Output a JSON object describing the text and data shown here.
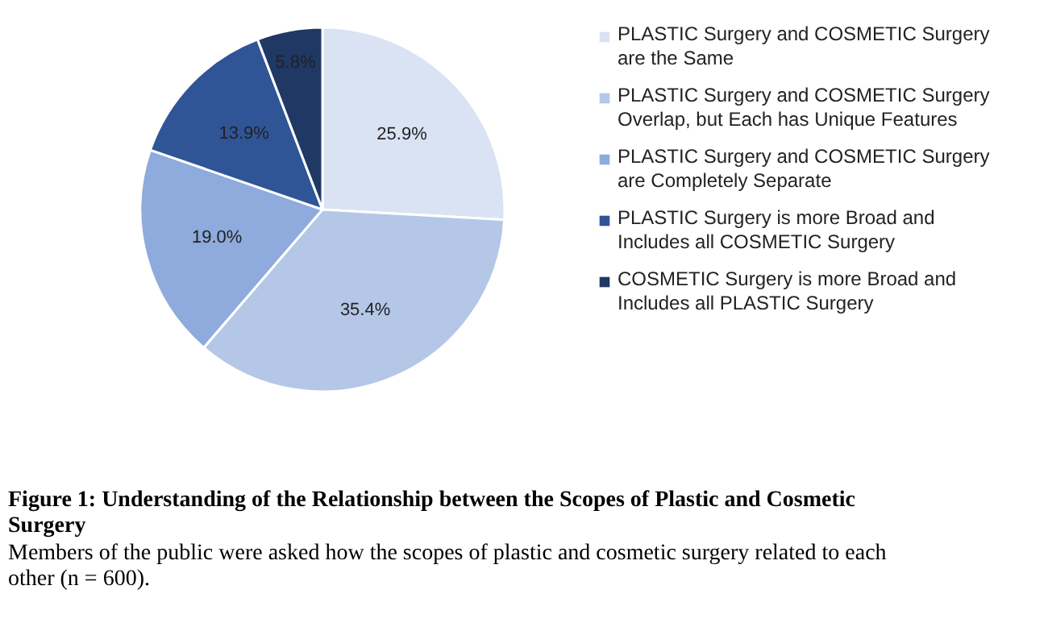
{
  "chart_data": {
    "type": "pie",
    "title": "Figure 1: Understanding of the Relationship between the Scopes of Plastic and Cosmetic Surgery",
    "subtitle": "Members of the public were asked how the scopes of plastic and cosmetic surgery related to each other (n = 600).",
    "categories": [
      "PLASTIC Surgery and COSMETIC Surgery are the Same",
      "PLASTIC Surgery and COSMETIC Surgery Overlap, but Each has Unique Features",
      "PLASTIC Surgery and COSMETIC Surgery are Completely Separate",
      "PLASTIC Surgery is more Broad and Includes all COSMETIC Surgery",
      "COSMETIC Surgery is more Broad and Includes all PLASTIC Surgery"
    ],
    "values": [
      25.9,
      35.4,
      19.0,
      13.9,
      5.8
    ],
    "value_labels": [
      "25.9%",
      "35.4%",
      "19.0%",
      "13.9%",
      "5.8%"
    ],
    "colors": [
      "#dae3f3",
      "#b4c7e7",
      "#8faadc",
      "#2f5597",
      "#1f3864"
    ],
    "legend": "right"
  }
}
